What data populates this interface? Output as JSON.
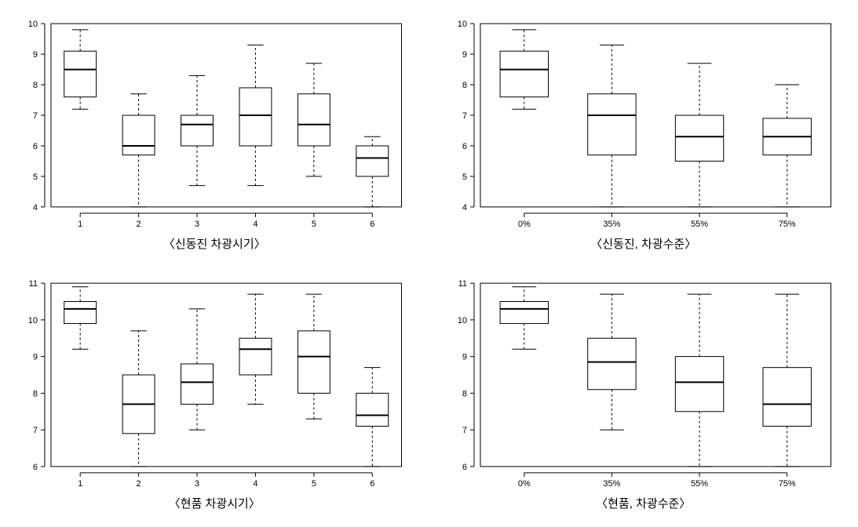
{
  "layout": {
    "rows": 2,
    "cols": 2,
    "background_color": "#ffffff",
    "axis_color": "#000000",
    "box_stroke": "#000000",
    "box_fill": "none",
    "whisker_dash": "3,3",
    "line_width": 1,
    "median_width": 2,
    "tick_len": 5,
    "tick_fontsize": 11,
    "caption_fontsize": 15,
    "box_width_ratio": 0.55
  },
  "panels": [
    {
      "id": "p1",
      "caption": "〈신동진 차광시기〉",
      "ylim": [
        4,
        10
      ],
      "ytick_step": 1,
      "categories": [
        "1",
        "2",
        "3",
        "4",
        "5",
        "6"
      ],
      "boxes": [
        {
          "min": 7.2,
          "q1": 7.6,
          "med": 8.5,
          "q3": 9.1,
          "max": 9.8
        },
        {
          "min": 4.0,
          "q1": 5.7,
          "med": 6.0,
          "q3": 7.0,
          "max": 7.7
        },
        {
          "min": 4.7,
          "q1": 6.0,
          "med": 6.7,
          "q3": 7.0,
          "max": 8.3
        },
        {
          "min": 4.7,
          "q1": 6.0,
          "med": 7.0,
          "q3": 7.9,
          "max": 9.3
        },
        {
          "min": 5.0,
          "q1": 6.0,
          "med": 6.7,
          "q3": 7.7,
          "max": 8.7
        },
        {
          "min": 4.0,
          "q1": 5.0,
          "med": 5.6,
          "q3": 6.0,
          "max": 6.3
        }
      ]
    },
    {
      "id": "p2",
      "caption": "〈신동진, 차광수준〉",
      "ylim": [
        4,
        10
      ],
      "ytick_step": 1,
      "categories": [
        "0%",
        "35%",
        "55%",
        "75%"
      ],
      "boxes": [
        {
          "min": 7.2,
          "q1": 7.6,
          "med": 8.5,
          "q3": 9.1,
          "max": 9.8
        },
        {
          "min": 4.0,
          "q1": 5.7,
          "med": 7.0,
          "q3": 7.7,
          "max": 9.3
        },
        {
          "min": 4.0,
          "q1": 5.5,
          "med": 6.3,
          "q3": 7.0,
          "max": 8.7
        },
        {
          "min": 4.0,
          "q1": 5.7,
          "med": 6.3,
          "q3": 6.9,
          "max": 8.0
        }
      ]
    },
    {
      "id": "p3",
      "caption": "〈현품 차광시기〉",
      "ylim": [
        6,
        11
      ],
      "ytick_step": 1,
      "categories": [
        "1",
        "2",
        "3",
        "4",
        "5",
        "6"
      ],
      "boxes": [
        {
          "min": 9.2,
          "q1": 9.9,
          "med": 10.3,
          "q3": 10.5,
          "max": 10.9
        },
        {
          "min": 6.0,
          "q1": 6.9,
          "med": 7.7,
          "q3": 8.5,
          "max": 9.7
        },
        {
          "min": 7.0,
          "q1": 7.7,
          "med": 8.3,
          "q3": 8.8,
          "max": 10.3
        },
        {
          "min": 7.7,
          "q1": 8.5,
          "med": 9.2,
          "q3": 9.5,
          "max": 10.7
        },
        {
          "min": 7.3,
          "q1": 8.0,
          "med": 9.0,
          "q3": 9.7,
          "max": 10.7
        },
        {
          "min": 6.0,
          "q1": 7.1,
          "med": 7.4,
          "q3": 8.0,
          "max": 8.7
        }
      ]
    },
    {
      "id": "p4",
      "caption": "〈현품, 차광수준〉",
      "ylim": [
        6,
        11
      ],
      "ytick_step": 1,
      "categories": [
        "0%",
        "35%",
        "55%",
        "75%"
      ],
      "boxes": [
        {
          "min": 9.2,
          "q1": 9.9,
          "med": 10.3,
          "q3": 10.5,
          "max": 10.9
        },
        {
          "min": 7.0,
          "q1": 8.1,
          "med": 8.85,
          "q3": 9.5,
          "max": 10.7
        },
        {
          "min": 6.0,
          "q1": 7.5,
          "med": 8.3,
          "q3": 9.0,
          "max": 10.7
        },
        {
          "min": 6.0,
          "q1": 7.1,
          "med": 7.7,
          "q3": 8.7,
          "max": 10.7
        }
      ]
    }
  ]
}
